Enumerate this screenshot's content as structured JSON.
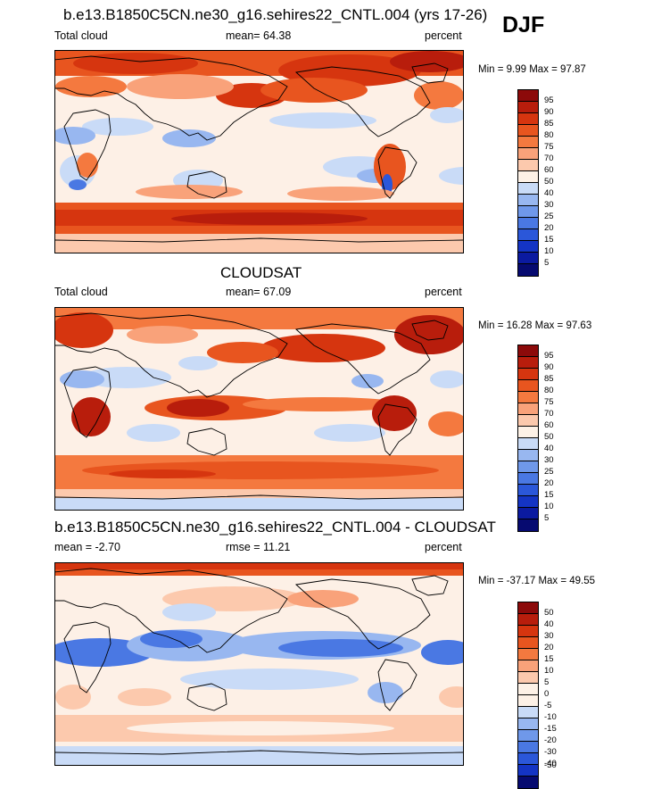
{
  "season": "DJF",
  "panels": [
    {
      "title": "b.e13.B1850C5CN.ne30_g16.sehires22_CNTL.004 (yrs 17-26)",
      "left_label": "Total cloud",
      "center_label": "mean=  64.38",
      "right_label": "percent",
      "minmax": "Min =   9.99 Max =  97.87",
      "legend_labels": [
        "95",
        "90",
        "85",
        "80",
        "75",
        "70",
        "60",
        "50",
        "40",
        "30",
        "25",
        "20",
        "15",
        "10",
        "5"
      ]
    },
    {
      "title": "CLOUDSAT",
      "left_label": "Total cloud",
      "center_label": "mean=  67.09",
      "right_label": "percent",
      "minmax": "Min =  16.28 Max =  97.63",
      "legend_labels": [
        "95",
        "90",
        "85",
        "80",
        "75",
        "70",
        "60",
        "50",
        "40",
        "30",
        "25",
        "20",
        "15",
        "10",
        "5"
      ]
    },
    {
      "title": "b.e13.B1850C5CN.ne30_g16.sehires22_CNTL.004 - CLOUDSAT",
      "left_label": "mean =  -2.70",
      "center_label": "rmse =  11.21",
      "right_label": "percent",
      "minmax": "Min = -37.17 Max =  49.55",
      "legend_labels": [
        "50",
        "40",
        "30",
        "20",
        "15",
        "10",
        "5",
        "0",
        "-5",
        "-10",
        "-15",
        "-20",
        "-30",
        "-40",
        "-50"
      ]
    }
  ],
  "colors": {
    "abs_scale": [
      "#8c0a0a",
      "#b81d0c",
      "#d6350f",
      "#e8551f",
      "#f4793f",
      "#f9a27a",
      "#fcc9ad",
      "#fdf1e6",
      "#c9dbf7",
      "#98b7f0",
      "#6f98ea",
      "#4a78e3",
      "#2b57d9",
      "#1434c4",
      "#0b1aa0",
      "#060a70"
    ],
    "diff_scale": [
      "#8c0a0a",
      "#b81d0c",
      "#d6350f",
      "#e8551f",
      "#f4793f",
      "#f9a27a",
      "#fcc9ad",
      "#fdf1e6",
      "#fdf1e6",
      "#c9dbf7",
      "#98b7f0",
      "#6f98ea",
      "#4a78e3",
      "#2b57d9",
      "#1434c4",
      "#060a70"
    ]
  }
}
